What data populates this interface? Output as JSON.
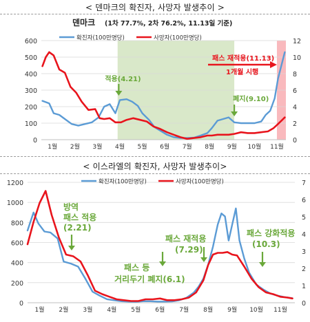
{
  "heading1": "< 덴마크의 확진자, 사망자 발생추이 >",
  "heading2": "< 이스라엘의 확진자, 사망자 발생추이>",
  "chart_data": [
    {
      "type": "line",
      "title": "덴마크",
      "subtitle": "(1차 77.7%, 2차 76.2%, 11.13일 기준)",
      "categories": [
        "1월",
        "2월",
        "3월",
        "4월",
        "5월",
        "6월",
        "7월",
        "8월",
        "9월",
        "10월",
        "11월"
      ],
      "x_range": [
        0.5,
        11.4
      ],
      "ylim_left": [
        0,
        600
      ],
      "yticks_left": [
        0,
        100,
        200,
        300,
        400,
        500,
        600
      ],
      "ylim_right": [
        0,
        12
      ],
      "yticks_right": [
        0,
        2,
        4,
        6,
        8,
        10,
        12
      ],
      "legend_position": "top-center",
      "grid": true,
      "series": [
        {
          "name": "확진자(100만명당)",
          "axis": "left",
          "color": "#5b9bd5",
          "x": [
            0.55,
            0.85,
            1.05,
            1.3,
            1.55,
            1.85,
            2.15,
            2.45,
            2.75,
            3.05,
            3.3,
            3.55,
            3.8,
            4.0,
            4.3,
            4.55,
            4.8,
            5.0,
            5.3,
            5.55,
            5.8,
            6.1,
            6.4,
            6.7,
            7.0,
            7.3,
            7.6,
            7.9,
            8.1,
            8.35,
            8.6,
            8.85,
            9.1,
            9.4,
            9.7,
            10.0,
            10.3,
            10.5,
            10.7,
            10.9,
            11.05,
            11.2,
            11.35
          ],
          "y": [
            235,
            220,
            160,
            150,
            125,
            95,
            85,
            95,
            105,
            135,
            200,
            215,
            160,
            240,
            245,
            230,
            205,
            160,
            120,
            75,
            55,
            30,
            15,
            10,
            10,
            12,
            25,
            40,
            70,
            115,
            125,
            135,
            105,
            100,
            100,
            100,
            110,
            150,
            175,
            250,
            370,
            450,
            530
          ]
        },
        {
          "name": "사망자(100만명당)",
          "axis": "right",
          "color": "#e8141c",
          "x": [
            0.55,
            0.7,
            0.85,
            1.05,
            1.3,
            1.55,
            1.8,
            2.05,
            2.3,
            2.6,
            2.9,
            3.1,
            3.3,
            3.55,
            3.8,
            4.05,
            4.3,
            4.6,
            4.9,
            5.2,
            5.5,
            5.8,
            6.1,
            6.4,
            6.7,
            7.0,
            7.3,
            7.6,
            7.9,
            8.1,
            8.35,
            8.6,
            8.85,
            9.1,
            9.4,
            9.7,
            10.0,
            10.3,
            10.6,
            10.85,
            11.05,
            11.2,
            11.35
          ],
          "y": [
            8.9,
            10.0,
            10.6,
            10.2,
            8.5,
            8.1,
            6.4,
            5.7,
            4.6,
            3.6,
            3.7,
            2.6,
            2.5,
            2.6,
            2.1,
            2.1,
            2.4,
            2.6,
            2.4,
            2.2,
            1.6,
            1.3,
            0.9,
            0.6,
            0.3,
            0.1,
            0.2,
            0.3,
            0.5,
            0.5,
            0.6,
            0.6,
            0.6,
            0.7,
            0.9,
            0.8,
            0.8,
            0.9,
            1.0,
            1.4,
            1.9,
            2.3,
            2.7
          ]
        }
      ],
      "shaded_regions": [
        {
          "from": 3.9,
          "to": 9.1,
          "color": "#d9e8c9"
        },
        {
          "from": 11.0,
          "to": 11.4,
          "color": "#f9b9bd"
        }
      ],
      "annotations": [
        {
          "text": "적용(4.21)",
          "x": 3.95,
          "color": "#6aa83a",
          "type": "arrow-down"
        },
        {
          "text": "폐지(9.10)",
          "x": 9.1,
          "color": "#6aa83a",
          "type": "arrow-down"
        },
        {
          "text": "패스 재적용(11.13)",
          "x": 11.0,
          "color": "#e8141c",
          "type": "arrow-right"
        },
        {
          "text": "1개월 시행",
          "x": 10.3,
          "color": "#e8141c",
          "type": "label"
        }
      ]
    },
    {
      "type": "line",
      "title": "",
      "categories": [
        "1월",
        "2월",
        "3월",
        "4월",
        "5월",
        "6월",
        "7월",
        "8월",
        "9월",
        "10월",
        "11월"
      ],
      "x_range": [
        0.5,
        11.6
      ],
      "ylim_left": [
        0,
        1200
      ],
      "yticks_left": [
        0,
        200,
        400,
        600,
        800,
        1000,
        1200
      ],
      "ylim_right": [
        0,
        7
      ],
      "yticks_right": [
        0,
        1,
        2,
        3,
        4,
        5,
        6,
        7
      ],
      "legend_position": "top-center",
      "grid": true,
      "series": [
        {
          "name": "확진자(100만명당)",
          "axis": "left",
          "color": "#5b9bd5",
          "x": [
            0.5,
            0.75,
            0.95,
            1.2,
            1.45,
            1.75,
            2.0,
            2.3,
            2.6,
            2.9,
            3.2,
            3.5,
            3.8,
            4.1,
            4.4,
            4.7,
            5.0,
            5.3,
            5.6,
            5.9,
            6.2,
            6.5,
            6.8,
            7.1,
            7.4,
            7.6,
            7.8,
            8.0,
            8.2,
            8.4,
            8.55,
            8.7,
            8.85,
            9.0,
            9.15,
            9.3,
            9.5,
            9.7,
            10.0,
            10.3,
            10.6,
            10.9,
            11.2,
            11.5
          ],
          "y": [
            720,
            900,
            790,
            710,
            700,
            640,
            410,
            390,
            360,
            240,
            110,
            70,
            35,
            25,
            15,
            12,
            10,
            15,
            15,
            12,
            12,
            13,
            25,
            50,
            100,
            160,
            240,
            380,
            560,
            780,
            890,
            860,
            620,
            780,
            940,
            620,
            440,
            300,
            180,
            130,
            90,
            70,
            55,
            45
          ]
        },
        {
          "name": "사망자(100만명당)",
          "axis": "right",
          "color": "#e8141c",
          "x": [
            0.5,
            0.75,
            1.0,
            1.25,
            1.5,
            1.8,
            2.1,
            2.4,
            2.7,
            3.0,
            3.3,
            3.6,
            3.9,
            4.2,
            4.5,
            4.8,
            5.1,
            5.4,
            5.7,
            6.0,
            6.3,
            6.6,
            6.9,
            7.2,
            7.5,
            7.8,
            8.0,
            8.2,
            8.4,
            8.6,
            8.8,
            9.0,
            9.2,
            9.5,
            9.8,
            10.1,
            10.4,
            10.7,
            11.0,
            11.3,
            11.5
          ],
          "y": [
            3.4,
            4.7,
            5.8,
            6.5,
            5.1,
            3.8,
            2.8,
            2.7,
            2.4,
            1.6,
            0.7,
            0.5,
            0.35,
            0.2,
            0.15,
            0.1,
            0.1,
            0.2,
            0.2,
            0.25,
            0.15,
            0.15,
            0.2,
            0.3,
            0.6,
            1.3,
            2.2,
            2.8,
            2.9,
            2.9,
            2.95,
            2.8,
            2.75,
            2.1,
            1.4,
            0.9,
            0.6,
            0.5,
            0.35,
            0.3,
            0.25
          ]
        }
      ],
      "annotations": [
        {
          "text": "방역",
          "x": 1.6,
          "color": "#6aa83a",
          "type": "label"
        },
        {
          "text": "패스 적용",
          "x": 1.6,
          "color": "#6aa83a",
          "type": "label"
        },
        {
          "text": "(2.21)",
          "x": 1.6,
          "color": "#6aa83a",
          "type": "arrow-down"
        },
        {
          "text": "패스 등",
          "x": 4.6,
          "color": "#6aa83a",
          "type": "label"
        },
        {
          "text": "거리두기 폐지(6.1)",
          "x": 6.0,
          "color": "#6aa83a",
          "type": "arrow-down"
        },
        {
          "text": "패스 재적용",
          "x": 7.3,
          "color": "#6aa83a",
          "type": "label"
        },
        {
          "text": "(7.29)",
          "x": 7.3,
          "color": "#6aa83a",
          "type": "arrow-down"
        },
        {
          "text": "패스 강화적용",
          "x": 10.3,
          "color": "#6aa83a",
          "type": "label"
        },
        {
          "text": "(10.3)",
          "x": 10.3,
          "color": "#6aa83a",
          "type": "arrow-down"
        }
      ]
    }
  ]
}
